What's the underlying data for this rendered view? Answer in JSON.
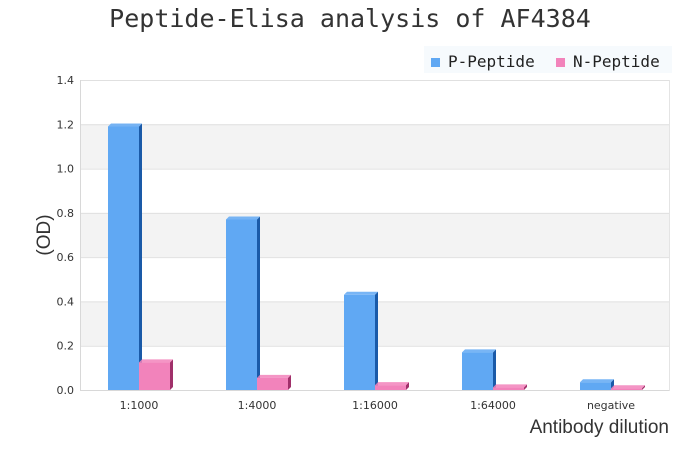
{
  "chart_data": {
    "type": "bar",
    "title": "Peptide-Elisa analysis of AF4384",
    "xlabel": "Antibody dilution",
    "ylabel": "(OD)",
    "ylim": [
      0,
      1.4
    ],
    "yticks": [
      "0.0",
      "0.2",
      "0.4",
      "0.6",
      "0.8",
      "1.0",
      "1.2",
      "1.4"
    ],
    "categories": [
      "1:1000",
      "1:4000",
      "1:16000",
      "1:64000",
      "negative"
    ],
    "series": [
      {
        "name": "P-Peptide",
        "values": [
          1.19,
          0.77,
          0.43,
          0.17,
          0.035
        ],
        "color": "#60a8f3",
        "side_color": "#1a5aa8"
      },
      {
        "name": "N-Peptide",
        "values": [
          0.125,
          0.055,
          0.022,
          0.012,
          0.008
        ],
        "color": "#f283bb",
        "side_color": "#a0306a"
      }
    ],
    "grid": true,
    "banded_background": true,
    "legend_position": "top-right"
  }
}
